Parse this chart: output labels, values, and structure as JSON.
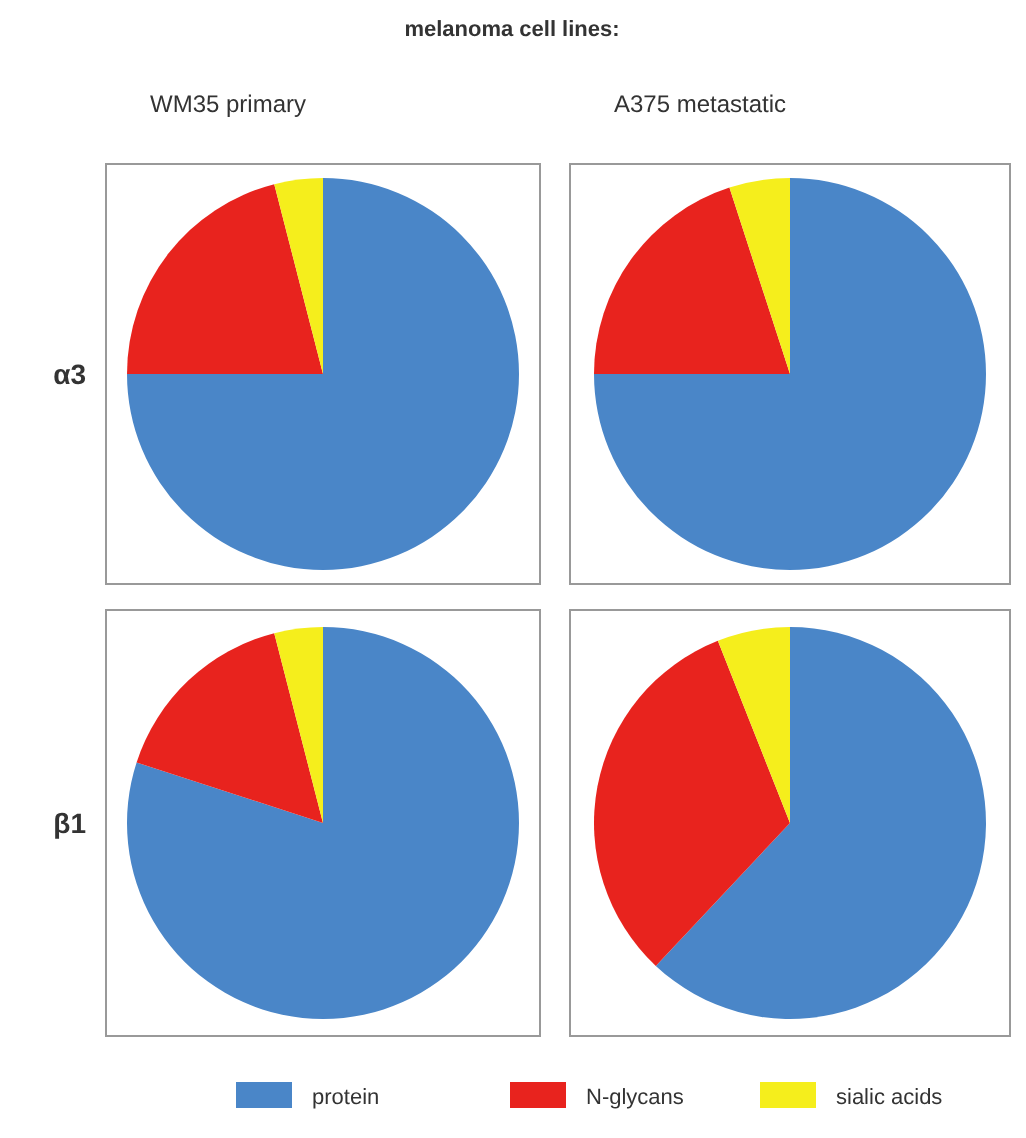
{
  "chart_data": [
    {
      "type": "pie",
      "title": "WM35 primary",
      "ylabel": "α3",
      "annotations": [
        "melanoma cell lines:"
      ],
      "categories": [
        null,
        null,
        null
      ],
      "values": [
        75,
        21,
        4
      ],
      "colors": [
        "#4a86c8",
        "#e8231e",
        "#f5ee1c"
      ]
    },
    {
      "type": "pie",
      "title": "A375 metastatic",
      "categories": [
        null,
        null,
        null
      ],
      "values": [
        75,
        20,
        5
      ],
      "colors": [
        "#4a86c8",
        "#e8231e",
        "#f5ee1c"
      ]
    },
    {
      "type": "pie",
      "ylabel": "β1",
      "categories": [
        null,
        null,
        null
      ],
      "values": [
        80,
        16,
        4
      ],
      "colors": [
        "#4a86c8",
        "#e8231e",
        "#f5ee1c"
      ]
    },
    {
      "type": "pie",
      "legend": "bottom",
      "categories": [
        "protein",
        "N-glycans",
        "sialic acids"
      ],
      "values": [
        62,
        32,
        6
      ],
      "colors": [
        "#4a86c8",
        "#e8231e",
        "#f5ee1c"
      ]
    }
  ]
}
